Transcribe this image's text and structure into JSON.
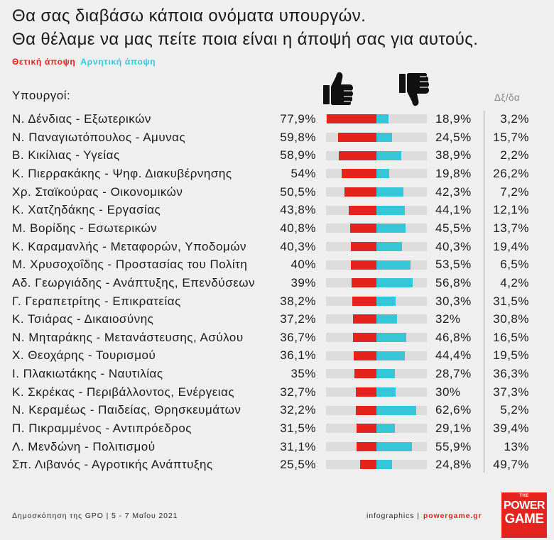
{
  "chart_data": {
    "type": "bar",
    "title": "Θα σας διαβάσω κάποια ονόματα υπουργών.",
    "subtitle": "Θα θέλαμε να μας πείτε ποια είναι η άποψή σας για αυτούς.",
    "category_header": "Υπουργοί:",
    "categories": [
      "Ν. Δένδιας - Εξωτερικών",
      "Ν. Παναγιωτόπουλος - Αμυνας",
      "Β. Κικίλιας - Υγείας",
      "Κ. Πιερρακάκης - Ψηφ. Διακυβέρνησης",
      "Χρ. Σταϊκούρας - Οικονομικών",
      "Κ. Χατζηδάκης - Εργασίας",
      "Μ. Βορίδης - Εσωτερικών",
      "Κ. Καραμανλής - Μεταφορών, Υποδομών",
      "Μ. Χρυσοχοΐδης - Προστασίας του Πολίτη",
      "Αδ. Γεωργιάδης - Ανάπτυξης, Επενδύσεων",
      "Γ. Γεραπετρίτης - Επικρατείας",
      "Κ. Τσιάρας - Δικαιοσύνης",
      "Ν. Μηταράκης - Μετανάστευσης, Ασύλου",
      "Χ. Θεοχάρης - Τουρισμού",
      "Ι. Πλακιωτάκης - Ναυτιλίας",
      "Κ. Σκρέκας - Περιβάλλοντος, Ενέργειας",
      "Ν. Κεραμέως - Παιδείας, Θρησκευμάτων",
      "Π. Πικραμμένος - Αντιπρόεδρος",
      "Λ. Μενδώνη - Πολιτισμού",
      "Σπ. Λιβανός - Αγροτικής Ανάπτυξης"
    ],
    "series": [
      {
        "name": "Θετική άποψη",
        "color": "#e3231c",
        "values": [
          77.9,
          59.8,
          58.9,
          54,
          50.5,
          43.8,
          40.8,
          40.3,
          40,
          39,
          38.2,
          37.2,
          36.7,
          36.1,
          35,
          32.7,
          32.2,
          31.5,
          31.1,
          25.5
        ],
        "labels": [
          "77,9%",
          "59,8%",
          "58,9%",
          "54%",
          "50,5%",
          "43,8%",
          "40,8%",
          "40,3%",
          "40%",
          "39%",
          "38,2%",
          "37,2%",
          "36,7%",
          "36,1%",
          "35%",
          "32,7%",
          "32,2%",
          "31,5%",
          "31,1%",
          "25,5%"
        ]
      },
      {
        "name": "Αρνητική άποψη",
        "color": "#37c5d8",
        "values": [
          18.9,
          24.5,
          38.9,
          19.8,
          42.3,
          44.1,
          45.5,
          40.3,
          53.5,
          56.8,
          30.3,
          32,
          46.8,
          44.4,
          28.7,
          30,
          62.6,
          29.1,
          55.9,
          24.8
        ],
        "labels": [
          "18,9%",
          "24,5%",
          "38,9%",
          "19,8%",
          "42,3%",
          "44,1%",
          "45,5%",
          "40,3%",
          "53,5%",
          "56,8%",
          "30,3%",
          "32%",
          "46,8%",
          "44,4%",
          "28,7%",
          "30%",
          "62,6%",
          "29,1%",
          "55,9%",
          "24,8%"
        ]
      },
      {
        "name": "Δξ/δα",
        "values": [
          3.2,
          15.7,
          2.2,
          26.2,
          7.2,
          12.1,
          13.7,
          19.4,
          6.5,
          4.2,
          31.5,
          30.8,
          16.5,
          19.5,
          36.3,
          37.3,
          5.2,
          39.4,
          13,
          49.7
        ],
        "labels": [
          "3,2%",
          "15,7%",
          "2,2%",
          "26,2%",
          "7,2%",
          "12,1%",
          "13,7%",
          "19,4%",
          "6,5%",
          "4,2%",
          "31,5%",
          "30,8%",
          "16,5%",
          "19,5%",
          "36,3%",
          "37,3%",
          "5,2%",
          "39,4%",
          "13%",
          "49,7%"
        ]
      }
    ],
    "legend_position": "top-left",
    "grid": false
  },
  "icons": {
    "positive_header": "thumbs-up-icon",
    "negative_header": "thumbs-down-icon"
  },
  "footer": {
    "source": "Δημοσκόπηση της GPO | 5 - 7 Μαΐου 2021",
    "credit": "infographics |",
    "site": "powergame.gr"
  },
  "logo": {
    "top": "THE",
    "line1": "POWER",
    "line2": "GAME",
    "color": "#e52420"
  }
}
